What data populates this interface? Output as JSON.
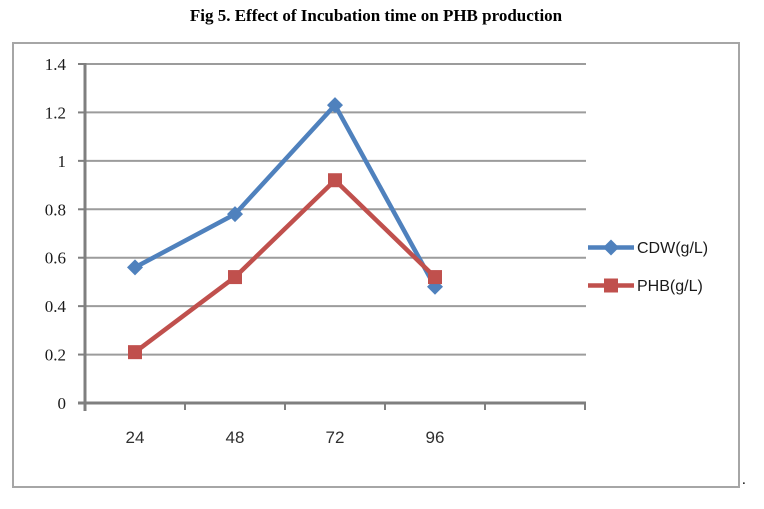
{
  "page": {
    "title": "Fig 5. Effect of Incubation time on PHB production",
    "trailing_period": "."
  },
  "chart_data": {
    "type": "line",
    "title": "Fig 5. Effect of Incubation time on PHB production",
    "categories": [
      "24",
      "48",
      "72",
      "96"
    ],
    "x_slots": 5,
    "series": [
      {
        "name": "CDW(g/L)",
        "key": "cdw",
        "color": "#4F81BD",
        "marker": "diamond",
        "values": [
          0.56,
          0.78,
          1.23,
          0.48
        ]
      },
      {
        "name": "PHB(g/L)",
        "key": "phb",
        "color": "#C0504D",
        "marker": "square",
        "values": [
          0.21,
          0.52,
          0.92,
          0.52
        ]
      }
    ],
    "xlabel": "",
    "ylabel": "",
    "y_axis": {
      "min": 0,
      "max": 1.4,
      "step": 0.2,
      "tick_labels": [
        "0",
        "0.2",
        "0.4",
        "0.6",
        "0.8",
        "1",
        "1.2",
        "1.4"
      ]
    },
    "grid": "horizontal",
    "legend_position": "right",
    "gridline_color": "#9c9c9c",
    "axis_color": "#7f7f7f"
  }
}
